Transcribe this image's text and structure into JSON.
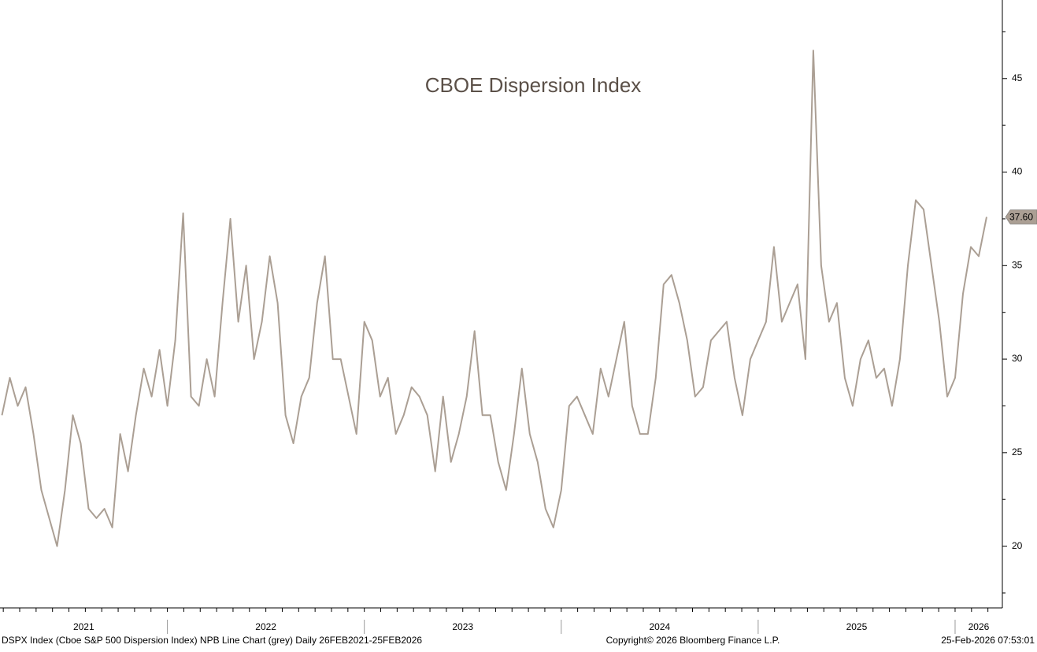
{
  "chart_data": {
    "type": "line",
    "title": "CBOE Dispersion Index",
    "footer": "DSPX Index (Cboe S&P 500 Dispersion Index) NPB Line Chart (grey) Daily 26FEB2021-25FEB2026",
    "copyright": "Copyright© 2026 Bloomberg Finance L.P.",
    "timestamp": "25-Feb-2026 07:53:01",
    "categories": [
      "2021",
      "2022",
      "2023",
      "2024",
      "2025",
      "2026"
    ],
    "xticks": [
      2022,
      2023,
      2024,
      2025,
      2026
    ],
    "xlim": [
      2021.15,
      2026.24
    ],
    "ylim": [
      16.7,
      49.2
    ],
    "yticks": [
      20,
      25,
      30,
      35,
      40,
      45
    ],
    "series": [
      {
        "name": "DSPX Index",
        "color": "#ab9f94",
        "last_label": "37.60",
        "x": [
          2021.16,
          2021.2,
          2021.24,
          2021.28,
          2021.32,
          2021.36,
          2021.4,
          2021.44,
          2021.48,
          2021.52,
          2021.56,
          2021.6,
          2021.64,
          2021.68,
          2021.72,
          2021.76,
          2021.8,
          2021.84,
          2021.88,
          2021.92,
          2021.96,
          2022,
          2022.04,
          2022.08,
          2022.12,
          2022.16,
          2022.2,
          2022.24,
          2022.28,
          2022.32,
          2022.36,
          2022.4,
          2022.44,
          2022.48,
          2022.52,
          2022.56,
          2022.6,
          2022.64,
          2022.68,
          2022.72,
          2022.76,
          2022.8,
          2022.84,
          2022.88,
          2022.92,
          2022.96,
          2023,
          2023.04,
          2023.08,
          2023.12,
          2023.16,
          2023.2,
          2023.24,
          2023.28,
          2023.32,
          2023.36,
          2023.4,
          2023.44,
          2023.48,
          2023.52,
          2023.56,
          2023.6,
          2023.64,
          2023.68,
          2023.72,
          2023.76,
          2023.8,
          2023.84,
          2023.88,
          2023.92,
          2023.96,
          2024,
          2024.04,
          2024.08,
          2024.12,
          2024.16,
          2024.2,
          2024.24,
          2024.28,
          2024.32,
          2024.36,
          2024.4,
          2024.44,
          2024.48,
          2024.52,
          2024.56,
          2024.6,
          2024.64,
          2024.68,
          2024.72,
          2024.76,
          2024.8,
          2024.84,
          2024.88,
          2024.92,
          2024.96,
          2025,
          2025.04,
          2025.08,
          2025.12,
          2025.16,
          2025.2,
          2025.24,
          2025.28,
          2025.32,
          2025.36,
          2025.4,
          2025.44,
          2025.48,
          2025.52,
          2025.56,
          2025.6,
          2025.64,
          2025.68,
          2025.72,
          2025.76,
          2025.8,
          2025.84,
          2025.88,
          2025.92,
          2025.96,
          2026,
          2026.04,
          2026.08,
          2026.12,
          2026.16
        ],
        "values": [
          27,
          29,
          27.5,
          28.5,
          26,
          23,
          21.5,
          20,
          23,
          27,
          25.5,
          22,
          21.5,
          22,
          21,
          26,
          24,
          27,
          29.5,
          28,
          30.5,
          27.5,
          31,
          37.8,
          28,
          27.5,
          30,
          28,
          33,
          37.5,
          32,
          35,
          30,
          32,
          35.5,
          33,
          27,
          25.5,
          28,
          29,
          33,
          35.5,
          30,
          30,
          28,
          26,
          32,
          31,
          28,
          29,
          26,
          27,
          28.5,
          28,
          27,
          24,
          28,
          24.5,
          26,
          28,
          31.5,
          27,
          27,
          24.5,
          23,
          26,
          29.5,
          26,
          24.5,
          22,
          21,
          23,
          27.5,
          28,
          27,
          26,
          29.5,
          28,
          30,
          32,
          27.5,
          26,
          26,
          29,
          34,
          34.5,
          33,
          31,
          28,
          28.5,
          31,
          31.5,
          32,
          29,
          27,
          30,
          31,
          32,
          36,
          32,
          33,
          34,
          30,
          46.5,
          35,
          32,
          33,
          29,
          27.5,
          30,
          31,
          29,
          29.5,
          27.5,
          30,
          35,
          38.5,
          38,
          35,
          32,
          28,
          29,
          33.5,
          36,
          35.5,
          37.6
        ]
      }
    ]
  }
}
